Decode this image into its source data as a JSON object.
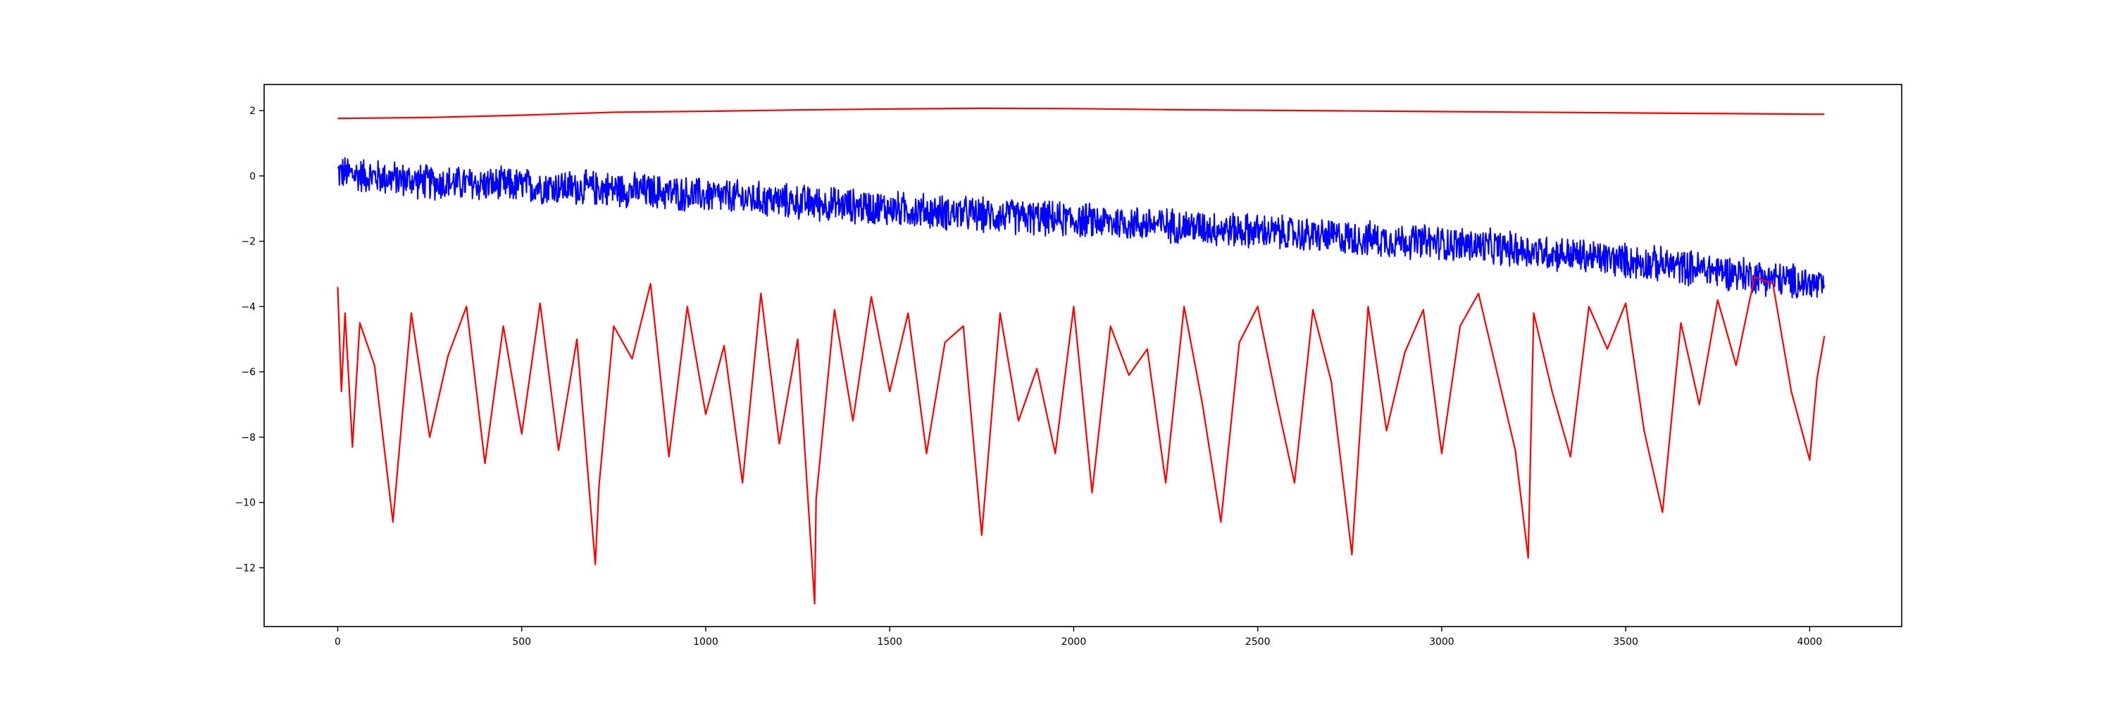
{
  "chart_data": {
    "type": "line",
    "title": "",
    "xlabel": "",
    "ylabel": "",
    "xlim": [
      -200,
      4250
    ],
    "ylim": [
      -13.8,
      2.8
    ],
    "x_ticks": [
      0,
      500,
      1000,
      1500,
      2000,
      2500,
      3000,
      3500,
      4000
    ],
    "y_ticks": [
      -12,
      -10,
      -8,
      -6,
      -4,
      -2,
      0,
      2
    ],
    "x_tick_labels": [
      "0",
      "500",
      "1000",
      "1500",
      "2000",
      "2500",
      "3000",
      "3500",
      "4000"
    ],
    "y_tick_labels": [
      "−12",
      "−10",
      "−8",
      "−6",
      "−4",
      "−2",
      "0",
      "2"
    ],
    "grid": false,
    "legend": "none",
    "series": [
      {
        "color": "#ff0000",
        "x": [
          0,
          250,
          500,
          750,
          1000,
          1250,
          1500,
          1750,
          2000,
          2250,
          2500,
          2750,
          3000,
          3250,
          3500,
          3750,
          4000,
          4040
        ],
        "values": [
          1.76,
          1.79,
          1.86,
          1.95,
          1.98,
          2.02,
          2.05,
          2.07,
          2.06,
          2.03,
          2.01,
          1.99,
          1.97,
          1.95,
          1.93,
          1.91,
          1.89,
          1.89
        ]
      },
      {
        "color": "#0000ff",
        "x": [
          0,
          250,
          500,
          750,
          1000,
          1250,
          1500,
          1750,
          2000,
          2250,
          2500,
          2750,
          3000,
          3250,
          3500,
          3750,
          4000,
          4040
        ],
        "values": [
          0.1,
          -0.2,
          -0.3,
          -0.4,
          -0.6,
          -0.8,
          -1.0,
          -1.2,
          -1.35,
          -1.5,
          -1.7,
          -1.9,
          -2.05,
          -2.3,
          -2.6,
          -2.9,
          -3.3,
          -3.4
        ],
        "noise_amplitude": 0.6
      },
      {
        "color": "#ff0000",
        "x": [
          0,
          10,
          20,
          40,
          60,
          100,
          150,
          200,
          250,
          300,
          350,
          400,
          450,
          500,
          550,
          600,
          650,
          700,
          710,
          750,
          800,
          850,
          900,
          950,
          1000,
          1050,
          1100,
          1150,
          1200,
          1250,
          1296,
          1300,
          1350,
          1400,
          1450,
          1500,
          1550,
          1600,
          1650,
          1700,
          1750,
          1800,
          1850,
          1900,
          1950,
          2000,
          2050,
          2100,
          2150,
          2200,
          2250,
          2300,
          2350,
          2400,
          2450,
          2500,
          2550,
          2600,
          2650,
          2700,
          2756,
          2800,
          2850,
          2900,
          2950,
          3000,
          3050,
          3100,
          3150,
          3200,
          3235,
          3250,
          3300,
          3350,
          3400,
          3450,
          3500,
          3550,
          3600,
          3650,
          3700,
          3750,
          3800,
          3850,
          3900,
          3950,
          4000,
          4020,
          4040
        ],
        "values": [
          -3.4,
          -6.6,
          -4.2,
          -8.3,
          -4.5,
          -5.8,
          -10.6,
          -4.2,
          -8.0,
          -5.5,
          -4.0,
          -8.8,
          -4.6,
          -7.9,
          -3.9,
          -8.4,
          -5.0,
          -11.9,
          -9.5,
          -4.6,
          -5.6,
          -3.3,
          -8.6,
          -4.0,
          -7.3,
          -5.2,
          -9.4,
          -3.6,
          -8.2,
          -5.0,
          -13.1,
          -9.9,
          -4.1,
          -7.5,
          -3.7,
          -6.6,
          -4.2,
          -8.5,
          -5.1,
          -4.6,
          -11.0,
          -4.2,
          -7.5,
          -5.9,
          -8.5,
          -4.0,
          -9.7,
          -4.6,
          -6.1,
          -5.3,
          -9.4,
          -4.0,
          -7.0,
          -10.6,
          -5.1,
          -4.0,
          -6.8,
          -9.4,
          -4.1,
          -6.3,
          -11.6,
          -4.0,
          -7.8,
          -5.4,
          -4.1,
          -8.5,
          -4.6,
          -3.6,
          -6.0,
          -8.4,
          -11.7,
          -4.2,
          -6.6,
          -8.6,
          -4.0,
          -5.3,
          -3.9,
          -7.8,
          -10.3,
          -4.5,
          -7.0,
          -3.8,
          -5.8,
          -3.1,
          -3.3,
          -6.6,
          -8.7,
          -6.2,
          -4.9
        ]
      }
    ]
  }
}
